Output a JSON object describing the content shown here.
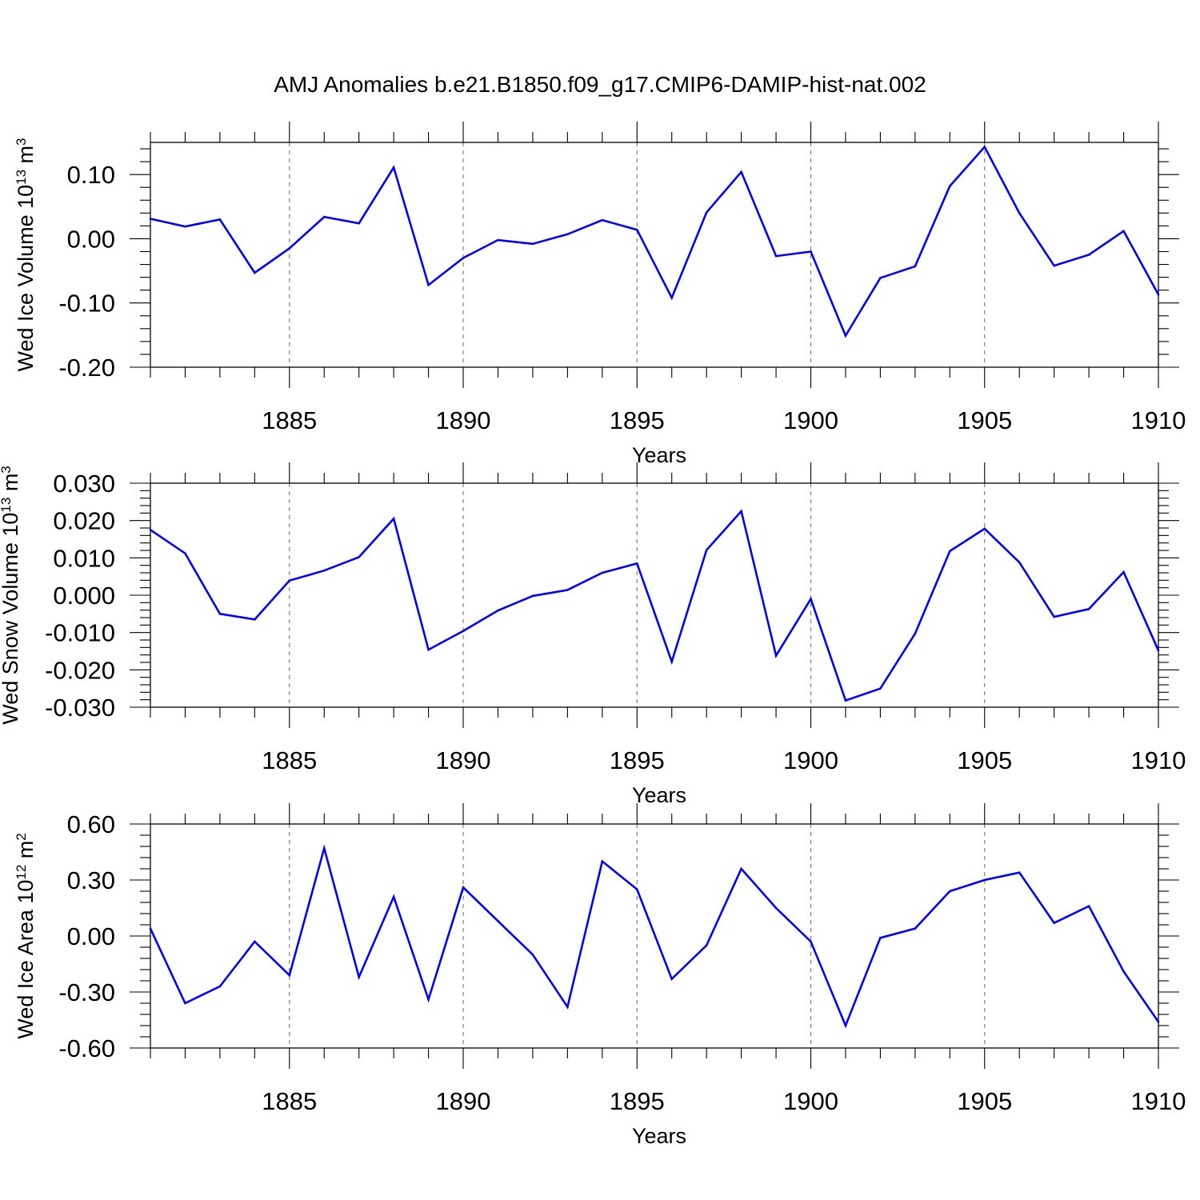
{
  "title": "AMJ Anomalies b.e21.B1850.f09_g17.CMIP6-DAMIP-hist-nat.002",
  "colors": {
    "line": "#0000ff",
    "axis": "#000000",
    "grid": "#777777"
  },
  "chart_data": [
    {
      "type": "line",
      "ylabel": {
        "text": "Wed Ice Volume 10",
        "exp": "13",
        "unit": " m",
        "unit_exp": "3"
      },
      "xlabel": "Years",
      "xlim": [
        1881,
        1910
      ],
      "ylim": [
        -0.2,
        0.15
      ],
      "xticks": [
        1885,
        1890,
        1895,
        1900,
        1905,
        1910
      ],
      "xtick_labels": [
        "1885",
        "1890",
        "1895",
        "1900",
        "1905",
        "1910"
      ],
      "yticks": [
        0.1,
        0.0,
        -0.1,
        -0.2
      ],
      "ytick_labels": [
        "0.10",
        "0.00",
        "-0.10",
        "-0.20"
      ],
      "grid_x": [
        1885,
        1890,
        1895,
        1900,
        1905
      ],
      "x": [
        1881,
        1882,
        1883,
        1884,
        1885,
        1886,
        1887,
        1888,
        1889,
        1890,
        1891,
        1892,
        1893,
        1894,
        1895,
        1896,
        1897,
        1898,
        1899,
        1900,
        1901,
        1902,
        1903,
        1904,
        1905,
        1906,
        1907,
        1908,
        1909,
        1910
      ],
      "y": [
        0.031,
        0.019,
        0.03,
        -0.053,
        -0.015,
        0.034,
        0.024,
        0.111,
        -0.072,
        -0.03,
        -0.002,
        -0.008,
        0.007,
        0.029,
        0.014,
        -0.092,
        0.041,
        0.104,
        -0.027,
        -0.02,
        -0.151,
        -0.061,
        -0.043,
        0.082,
        0.143,
        0.04,
        -0.042,
        -0.025,
        0.012,
        -0.087
      ]
    },
    {
      "type": "line",
      "ylabel": {
        "text": "Wed Snow Volume 10",
        "exp": "13",
        "unit": " m",
        "unit_exp": "3"
      },
      "xlabel": "Years",
      "xlim": [
        1881,
        1910
      ],
      "ylim": [
        -0.03,
        0.03
      ],
      "xticks": [
        1885,
        1890,
        1895,
        1900,
        1905,
        1910
      ],
      "xtick_labels": [
        "1885",
        "1890",
        "1895",
        "1900",
        "1905",
        "1910"
      ],
      "yticks": [
        0.03,
        0.02,
        0.01,
        0.0,
        -0.01,
        -0.02,
        -0.03
      ],
      "ytick_labels": [
        "0.030",
        "0.020",
        "0.010",
        "0.000",
        "-0.010",
        "-0.020",
        "-0.030"
      ],
      "grid_x": [
        1885,
        1890,
        1895,
        1900,
        1905
      ],
      "x": [
        1881,
        1882,
        1883,
        1884,
        1885,
        1886,
        1887,
        1888,
        1889,
        1890,
        1891,
        1892,
        1893,
        1894,
        1895,
        1896,
        1897,
        1898,
        1899,
        1900,
        1901,
        1902,
        1903,
        1904,
        1905,
        1906,
        1907,
        1908,
        1909,
        1910
      ],
      "y": [
        0.0175,
        0.0112,
        -0.005,
        -0.0065,
        0.0039,
        0.0066,
        0.0102,
        0.0205,
        -0.0146,
        -0.0096,
        -0.0041,
        -0.0002,
        0.0014,
        0.006,
        0.0085,
        -0.0178,
        0.0121,
        0.0225,
        -0.0162,
        -0.001,
        -0.0282,
        -0.025,
        -0.0103,
        0.0118,
        0.0178,
        0.0088,
        -0.0058,
        -0.0037,
        0.0062,
        -0.0148
      ]
    },
    {
      "type": "line",
      "ylabel": {
        "text": "Wed Ice Area 10",
        "exp": "12",
        "unit": " m",
        "unit_exp": "2"
      },
      "xlabel": "Years",
      "xlim": [
        1881,
        1910
      ],
      "ylim": [
        -0.6,
        0.6
      ],
      "xticks": [
        1885,
        1890,
        1895,
        1900,
        1905,
        1910
      ],
      "xtick_labels": [
        "1885",
        "1890",
        "1895",
        "1900",
        "1905",
        "1910"
      ],
      "yticks": [
        0.6,
        0.3,
        0.0,
        -0.3,
        -0.6
      ],
      "ytick_labels": [
        "0.60",
        "0.30",
        "0.00",
        "-0.30",
        "-0.60"
      ],
      "grid_x": [
        1885,
        1890,
        1895,
        1900,
        1905
      ],
      "x": [
        1881,
        1882,
        1883,
        1884,
        1885,
        1886,
        1887,
        1888,
        1889,
        1890,
        1891,
        1892,
        1893,
        1894,
        1895,
        1896,
        1897,
        1898,
        1899,
        1900,
        1901,
        1902,
        1903,
        1904,
        1905,
        1906,
        1907,
        1908,
        1909,
        1910
      ],
      "y": [
        0.04,
        -0.36,
        -0.27,
        -0.03,
        -0.21,
        0.47,
        -0.22,
        0.21,
        -0.34,
        0.26,
        0.08,
        -0.1,
        -0.38,
        0.4,
        0.25,
        -0.23,
        -0.05,
        0.36,
        0.15,
        -0.03,
        -0.48,
        -0.01,
        0.04,
        0.24,
        0.3,
        0.34,
        0.07,
        0.16,
        -0.19,
        -0.46
      ]
    }
  ]
}
